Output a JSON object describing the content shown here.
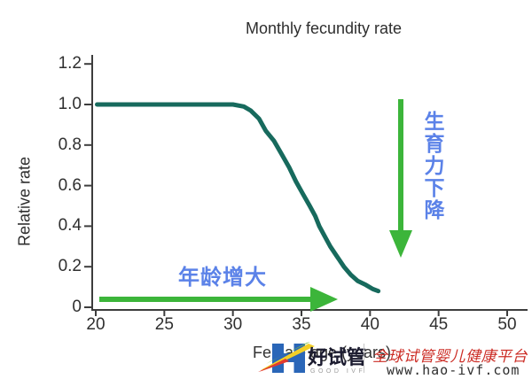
{
  "colors": {
    "curve": "#176a5d",
    "arrow_green": "#3cb53a",
    "annotation_blue": "#5b82e8",
    "axis": "#3d3d3d",
    "logo_blue": "#2a66b8",
    "bolt_green": "#7ac143",
    "bolt_yellow": "#f2cf26",
    "bolt_red": "#e23b2e",
    "watermark_red": "#cc2d26"
  },
  "chart_data": {
    "type": "line",
    "title": "Monthly fecundity rate",
    "xlabel": "Female age (years)",
    "ylabel": "Relative rate",
    "xlim": [
      20,
      50
    ],
    "ylim": [
      0,
      1.2
    ],
    "x_ticks": [
      "20",
      "25",
      "30",
      "35",
      "40",
      "45",
      "50"
    ],
    "y_ticks": [
      "0",
      "0.2",
      "0.4",
      "0.6",
      "0.8",
      "1.0",
      "1.2"
    ],
    "grid": false,
    "legend": "none",
    "series": [
      {
        "name": "monthly fecundity rate",
        "color": "#176a5d",
        "points": [
          [
            20.1,
            1.0
          ],
          [
            25.0,
            1.0
          ],
          [
            28.5,
            1.0
          ],
          [
            30.0,
            1.0
          ],
          [
            30.8,
            0.99
          ],
          [
            31.3,
            0.97
          ],
          [
            31.9,
            0.93
          ],
          [
            32.4,
            0.87
          ],
          [
            33.0,
            0.82
          ],
          [
            33.6,
            0.75
          ],
          [
            34.1,
            0.69
          ],
          [
            34.6,
            0.62
          ],
          [
            35.1,
            0.56
          ],
          [
            35.6,
            0.5
          ],
          [
            36.0,
            0.45
          ],
          [
            36.3,
            0.4
          ],
          [
            36.7,
            0.35
          ],
          [
            37.1,
            0.3
          ],
          [
            37.6,
            0.25
          ],
          [
            38.1,
            0.2
          ],
          [
            38.6,
            0.16
          ],
          [
            39.1,
            0.13
          ],
          [
            39.7,
            0.11
          ],
          [
            40.2,
            0.09
          ],
          [
            40.6,
            0.08
          ]
        ]
      }
    ],
    "annotations": [
      {
        "text": "年龄增大",
        "direction": "arrow-right"
      },
      {
        "text": "生育力下降",
        "direction": "arrow-down"
      }
    ]
  },
  "watermark": {
    "brand_cn": "好试管",
    "brand_en": "GOOD IVF",
    "tagline_cn": "全球试管婴儿健康平台",
    "url": "www.hao-ivf.com"
  }
}
